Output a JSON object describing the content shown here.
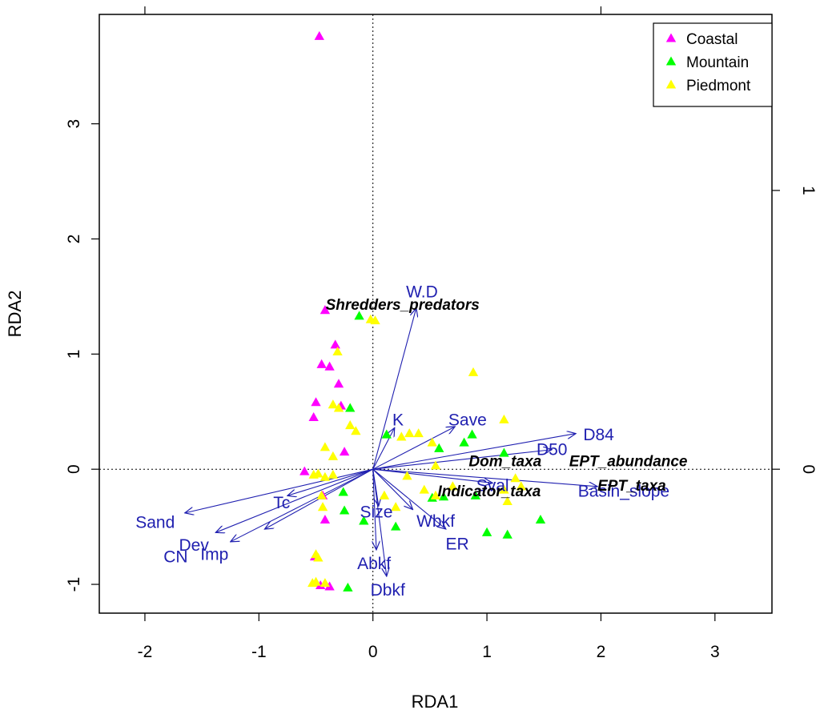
{
  "chart_data": {
    "type": "scatter",
    "subtype": "rda-biplot",
    "title": "",
    "xlabel": "RDA1",
    "ylabel": "RDA2",
    "xlim": [
      -2.4,
      3.5
    ],
    "ylim": [
      -1.25,
      3.95
    ],
    "x_ticks": [
      -2,
      -1,
      0,
      1,
      2,
      3
    ],
    "y_ticks": [
      -1,
      0,
      1,
      2,
      3
    ],
    "top_ticks": [
      -2,
      2
    ],
    "right_ticks": [
      0,
      1
    ],
    "right_tick_labels": [
      "0",
      "1"
    ],
    "legend": {
      "position": "top-right",
      "entries": [
        {
          "label": "Coastal",
          "color": "#ff00ff"
        },
        {
          "label": "Mountain",
          "color": "#00ff00"
        },
        {
          "label": "Piedmont",
          "color": "#ffff00"
        }
      ]
    },
    "series": [
      {
        "name": "Coastal",
        "color": "#ff00ff",
        "points": [
          [
            -0.47,
            3.76
          ],
          [
            -0.42,
            1.38
          ],
          [
            -0.33,
            1.08
          ],
          [
            -0.45,
            0.91
          ],
          [
            -0.38,
            0.89
          ],
          [
            -0.3,
            0.74
          ],
          [
            -0.5,
            0.58
          ],
          [
            -0.52,
            0.45
          ],
          [
            -0.28,
            0.55
          ],
          [
            -0.25,
            0.15
          ],
          [
            -0.6,
            -0.02
          ],
          [
            -0.42,
            -0.44
          ],
          [
            -0.51,
            -0.76
          ],
          [
            -0.38,
            -1.02
          ],
          [
            -0.46,
            -1.01
          ],
          [
            -0.44,
            -0.23
          ]
        ]
      },
      {
        "name": "Mountain",
        "color": "#00ff00",
        "points": [
          [
            -0.12,
            1.33
          ],
          [
            -0.2,
            0.53
          ],
          [
            0.12,
            0.3
          ],
          [
            0.87,
            0.3
          ],
          [
            0.8,
            0.23
          ],
          [
            0.58,
            0.18
          ],
          [
            1.15,
            0.14
          ],
          [
            0.62,
            -0.24
          ],
          [
            0.9,
            -0.23
          ],
          [
            -0.08,
            -0.45
          ],
          [
            -0.25,
            -0.36
          ],
          [
            0.2,
            -0.5
          ],
          [
            0.52,
            -0.25
          ],
          [
            1.0,
            -0.55
          ],
          [
            1.18,
            -0.57
          ],
          [
            1.47,
            -0.44
          ],
          [
            -0.22,
            -1.03
          ],
          [
            -0.26,
            -0.2
          ]
        ]
      },
      {
        "name": "Piedmont",
        "color": "#ffff00",
        "points": [
          [
            -0.02,
            1.3
          ],
          [
            0.02,
            1.29
          ],
          [
            -0.31,
            1.02
          ],
          [
            -0.35,
            0.56
          ],
          [
            -0.3,
            0.53
          ],
          [
            -0.2,
            0.38
          ],
          [
            -0.15,
            0.33
          ],
          [
            -0.42,
            0.19
          ],
          [
            -0.35,
            0.11
          ],
          [
            0.25,
            0.28
          ],
          [
            0.32,
            0.31
          ],
          [
            0.4,
            0.31
          ],
          [
            0.52,
            0.23
          ],
          [
            0.88,
            0.84
          ],
          [
            1.15,
            0.43
          ],
          [
            0.55,
            0.03
          ],
          [
            0.3,
            -0.06
          ],
          [
            0.2,
            -0.33
          ],
          [
            0.45,
            -0.18
          ],
          [
            0.7,
            -0.15
          ],
          [
            1.15,
            -0.18
          ],
          [
            1.18,
            -0.28
          ],
          [
            1.25,
            -0.08
          ],
          [
            1.3,
            -0.15
          ],
          [
            -0.42,
            -0.07
          ],
          [
            -0.52,
            -0.05
          ],
          [
            -0.48,
            -0.04
          ],
          [
            -0.35,
            -0.05
          ],
          [
            -0.45,
            -0.23
          ],
          [
            -0.44,
            -0.33
          ],
          [
            -0.5,
            -0.74
          ],
          [
            -0.48,
            -0.77
          ],
          [
            -0.53,
            -0.99
          ],
          [
            -0.5,
            -0.98
          ],
          [
            -0.42,
            -0.99
          ],
          [
            0.55,
            -0.23
          ],
          [
            0.1,
            -0.23
          ]
        ]
      }
    ],
    "explanatory_vectors": [
      {
        "label": "W.D",
        "end": [
          0.38,
          1.4
        ],
        "label_pos": [
          0.43,
          1.53
        ]
      },
      {
        "label": "K",
        "end": [
          0.19,
          0.36
        ],
        "label_pos": [
          0.22,
          0.42
        ]
      },
      {
        "label": "Save",
        "end": [
          0.72,
          0.37
        ],
        "label_pos": [
          0.83,
          0.42
        ]
      },
      {
        "label": "D84",
        "end": [
          1.78,
          0.31
        ],
        "label_pos": [
          1.98,
          0.29
        ]
      },
      {
        "label": "D50",
        "end": [
          1.57,
          0.17
        ],
        "label_pos": [
          1.57,
          0.16
        ]
      },
      {
        "label": "Basin_slope",
        "end": [
          1.97,
          -0.15
        ],
        "label_pos": [
          2.2,
          -0.2
        ]
      },
      {
        "label": "Sval",
        "end": [
          1.05,
          -0.12
        ],
        "label_pos": [
          1.05,
          -0.15
        ]
      },
      {
        "label": "Sand",
        "end": [
          -1.65,
          -0.38
        ],
        "label_pos": [
          -1.91,
          -0.47
        ]
      },
      {
        "label": "Tc",
        "end": [
          -0.75,
          -0.23
        ],
        "label_pos": [
          -0.8,
          -0.3
        ]
      },
      {
        "label": "Dev",
        "end": [
          -1.38,
          -0.55
        ],
        "label_pos": [
          -1.57,
          -0.67
        ]
      },
      {
        "label": "CN",
        "end": [
          -0.95,
          -0.52
        ],
        "label_pos": [
          -1.73,
          -0.77
        ]
      },
      {
        "label": "Imp",
        "end": [
          -1.25,
          -0.63
        ],
        "label_pos": [
          -1.39,
          -0.75
        ]
      },
      {
        "label": "Size",
        "end": [
          0.05,
          -0.32
        ],
        "label_pos": [
          0.03,
          -0.38
        ]
      },
      {
        "label": "Wbkf",
        "end": [
          0.35,
          -0.35
        ],
        "label_pos": [
          0.55,
          -0.46
        ]
      },
      {
        "label": "ER",
        "end": [
          0.64,
          -0.52
        ],
        "label_pos": [
          0.74,
          -0.66
        ]
      },
      {
        "label": "Abkf",
        "end": [
          0.03,
          -0.7
        ],
        "label_pos": [
          0.01,
          -0.83
        ]
      },
      {
        "label": "Dbkf",
        "end": [
          0.12,
          -0.93
        ],
        "label_pos": [
          0.13,
          -1.06
        ]
      }
    ],
    "response_labels": [
      {
        "label": "Shredders_predators",
        "pos": [
          0.26,
          1.42
        ]
      },
      {
        "label": "Dom_taxa",
        "pos": [
          1.16,
          0.06
        ]
      },
      {
        "label": "EPT_abundance",
        "pos": [
          2.24,
          0.06
        ]
      },
      {
        "label": "Indicator_taxa",
        "pos": [
          1.02,
          -0.2
        ]
      },
      {
        "label": "EPT_taxa",
        "pos": [
          2.27,
          -0.15
        ]
      }
    ]
  }
}
